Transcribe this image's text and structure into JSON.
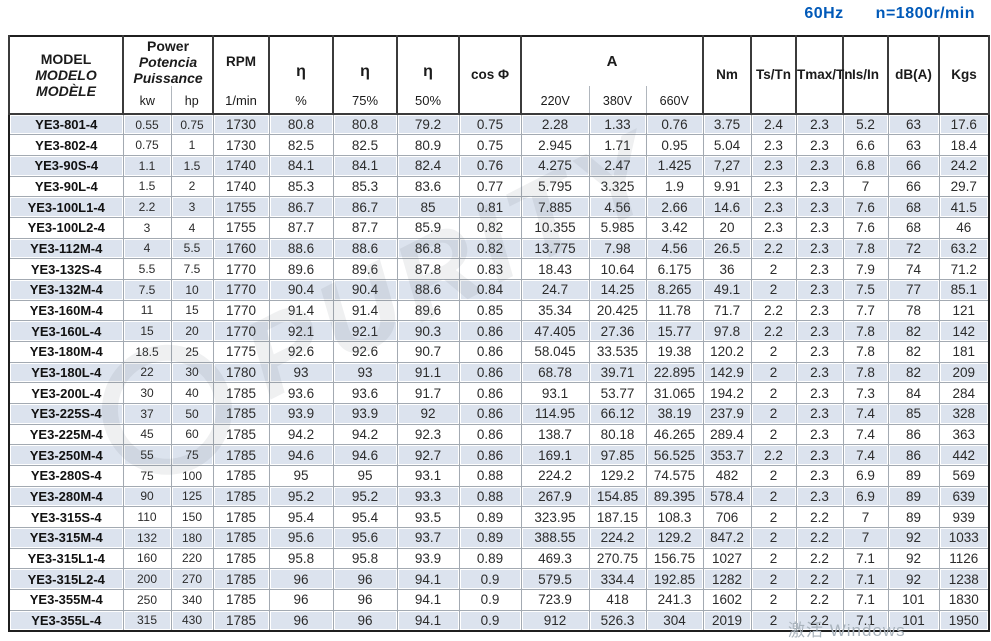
{
  "page": {
    "frequency_label": "60Hz",
    "speed_label": "n=1800r/min",
    "accent_color": "#0059b8",
    "row_shade_color": "#dce3ee",
    "watermark_text": "PURITY",
    "activate_watermark": "激活 Windows"
  },
  "table": {
    "header": {
      "model_lines": [
        "MODEL",
        "MODELO",
        "MODÈLE"
      ],
      "power_lines": [
        "Power",
        "Potencia",
        "Puissance"
      ],
      "power_unit_kw": "kw",
      "power_unit_hp": "hp",
      "rpm_label": "RPM",
      "rpm_unit": "1/min",
      "eta_label": "η",
      "eta_unit_100": "%",
      "eta_unit_75": "75%",
      "eta_unit_50": "50%",
      "cos_label": "cos Φ",
      "current_label": "A",
      "voltage_220": "220V",
      "voltage_380": "380V",
      "voltage_660": "660V",
      "nm_label": "Nm",
      "ts_tn_label": "Ts/Tn",
      "tmax_tn_label": "Tmax/Tn",
      "is_in_label": "Is/In",
      "db_label": "dB(A)",
      "kgs_label": "Kgs"
    },
    "columns": [
      "model",
      "kw",
      "hp",
      "rpm",
      "eta_100",
      "eta_75",
      "eta_50",
      "cos_phi",
      "a_220v",
      "a_380v",
      "a_660v",
      "nm",
      "ts_tn",
      "tmax_tn",
      "is_in",
      "db_a",
      "kgs"
    ],
    "rows": [
      [
        "YE3-801-4",
        "0.55",
        "0.75",
        "1730",
        "80.8",
        "80.8",
        "79.2",
        "0.75",
        "2.28",
        "1.33",
        "0.76",
        "3.75",
        "2.4",
        "2.3",
        "5.2",
        "63",
        "17.6"
      ],
      [
        "YE3-802-4",
        "0.75",
        "1",
        "1730",
        "82.5",
        "82.5",
        "80.9",
        "0.75",
        "2.945",
        "1.71",
        "0.95",
        "5.04",
        "2.3",
        "2.3",
        "6.6",
        "63",
        "18.4"
      ],
      [
        "YE3-90S-4",
        "1.1",
        "1.5",
        "1740",
        "84.1",
        "84.1",
        "82.4",
        "0.76",
        "4.275",
        "2.47",
        "1.425",
        "7,27",
        "2.3",
        "2.3",
        "6.8",
        "66",
        "24.2"
      ],
      [
        "YE3-90L-4",
        "1.5",
        "2",
        "1740",
        "85.3",
        "85.3",
        "83.6",
        "0.77",
        "5.795",
        "3.325",
        "1.9",
        "9.91",
        "2.3",
        "2.3",
        "7",
        "66",
        "29.7"
      ],
      [
        "YE3-100L1-4",
        "2.2",
        "3",
        "1755",
        "86.7",
        "86.7",
        "85",
        "0.81",
        "7.885",
        "4.56",
        "2.66",
        "14.6",
        "2.3",
        "2.3",
        "7.6",
        "68",
        "41.5"
      ],
      [
        "YE3-100L2-4",
        "3",
        "4",
        "1755",
        "87.7",
        "87.7",
        "85.9",
        "0.82",
        "10.355",
        "5.985",
        "3.42",
        "20",
        "2.3",
        "2.3",
        "7.6",
        "68",
        "46"
      ],
      [
        "YE3-112M-4",
        "4",
        "5.5",
        "1760",
        "88.6",
        "88.6",
        "86.8",
        "0.82",
        "13.775",
        "7.98",
        "4.56",
        "26.5",
        "2.2",
        "2.3",
        "7.8",
        "72",
        "63.2"
      ],
      [
        "YE3-132S-4",
        "5.5",
        "7.5",
        "1770",
        "89.6",
        "89.6",
        "87.8",
        "0.83",
        "18.43",
        "10.64",
        "6.175",
        "36",
        "2",
        "2.3",
        "7.9",
        "74",
        "71.2"
      ],
      [
        "YE3-132M-4",
        "7.5",
        "10",
        "1770",
        "90.4",
        "90.4",
        "88.6",
        "0.84",
        "24.7",
        "14.25",
        "8.265",
        "49.1",
        "2",
        "2.3",
        "7.5",
        "77",
        "85.1"
      ],
      [
        "YE3-160M-4",
        "11",
        "15",
        "1770",
        "91.4",
        "91.4",
        "89.6",
        "0.85",
        "35.34",
        "20.425",
        "11.78",
        "71.7",
        "2.2",
        "2.3",
        "7.7",
        "78",
        "121"
      ],
      [
        "YE3-160L-4",
        "15",
        "20",
        "1770",
        "92.1",
        "92.1",
        "90.3",
        "0.86",
        "47.405",
        "27.36",
        "15.77",
        "97.8",
        "2.2",
        "2.3",
        "7.8",
        "82",
        "142"
      ],
      [
        "YE3-180M-4",
        "18.5",
        "25",
        "1775",
        "92.6",
        "92.6",
        "90.7",
        "0.86",
        "58.045",
        "33.535",
        "19.38",
        "120.2",
        "2",
        "2.3",
        "7.8",
        "82",
        "181"
      ],
      [
        "YE3-180L-4",
        "22",
        "30",
        "1780",
        "93",
        "93",
        "91.1",
        "0.86",
        "68.78",
        "39.71",
        "22.895",
        "142.9",
        "2",
        "2.3",
        "7.8",
        "82",
        "209"
      ],
      [
        "YE3-200L-4",
        "30",
        "40",
        "1785",
        "93.6",
        "93.6",
        "91.7",
        "0.86",
        "93.1",
        "53.77",
        "31.065",
        "194.2",
        "2",
        "2.3",
        "7.3",
        "84",
        "284"
      ],
      [
        "YE3-225S-4",
        "37",
        "50",
        "1785",
        "93.9",
        "93.9",
        "92",
        "0.86",
        "114.95",
        "66.12",
        "38.19",
        "237.9",
        "2",
        "2.3",
        "7.4",
        "85",
        "328"
      ],
      [
        "YE3-225M-4",
        "45",
        "60",
        "1785",
        "94.2",
        "94.2",
        "92.3",
        "0.86",
        "138.7",
        "80.18",
        "46.265",
        "289.4",
        "2",
        "2.3",
        "7.4",
        "86",
        "363"
      ],
      [
        "YE3-250M-4",
        "55",
        "75",
        "1785",
        "94.6",
        "94.6",
        "92.7",
        "0.86",
        "169.1",
        "97.85",
        "56.525",
        "353.7",
        "2.2",
        "2.3",
        "7.4",
        "86",
        "442"
      ],
      [
        "YE3-280S-4",
        "75",
        "100",
        "1785",
        "95",
        "95",
        "93.1",
        "0.88",
        "224.2",
        "129.2",
        "74.575",
        "482",
        "2",
        "2.3",
        "6.9",
        "89",
        "569"
      ],
      [
        "YE3-280M-4",
        "90",
        "125",
        "1785",
        "95.2",
        "95.2",
        "93.3",
        "0.88",
        "267.9",
        "154.85",
        "89.395",
        "578.4",
        "2",
        "2.3",
        "6.9",
        "89",
        "639"
      ],
      [
        "YE3-315S-4",
        "110",
        "150",
        "1785",
        "95.4",
        "95.4",
        "93.5",
        "0.89",
        "323.95",
        "187.15",
        "108.3",
        "706",
        "2",
        "2.2",
        "7",
        "89",
        "939"
      ],
      [
        "YE3-315M-4",
        "132",
        "180",
        "1785",
        "95.6",
        "95.6",
        "93.7",
        "0.89",
        "388.55",
        "224.2",
        "129.2",
        "847.2",
        "2",
        "2.2",
        "7",
        "92",
        "1033"
      ],
      [
        "YE3-315L1-4",
        "160",
        "220",
        "1785",
        "95.8",
        "95.8",
        "93.9",
        "0.89",
        "469.3",
        "270.75",
        "156.75",
        "1027",
        "2",
        "2.2",
        "7.1",
        "92",
        "1126"
      ],
      [
        "YE3-315L2-4",
        "200",
        "270",
        "1785",
        "96",
        "96",
        "94.1",
        "0.9",
        "579.5",
        "334.4",
        "192.85",
        "1282",
        "2",
        "2.2",
        "7.1",
        "92",
        "1238"
      ],
      [
        "YE3-355M-4",
        "250",
        "340",
        "1785",
        "96",
        "96",
        "94.1",
        "0.9",
        "723.9",
        "418",
        "241.3",
        "1602",
        "2",
        "2.2",
        "7.1",
        "101",
        "1830"
      ],
      [
        "YE3-355L-4",
        "315",
        "430",
        "1785",
        "96",
        "96",
        "94.1",
        "0.9",
        "912",
        "526.3",
        "304",
        "2019",
        "2",
        "2.2",
        "7.1",
        "101",
        "1950"
      ]
    ]
  }
}
